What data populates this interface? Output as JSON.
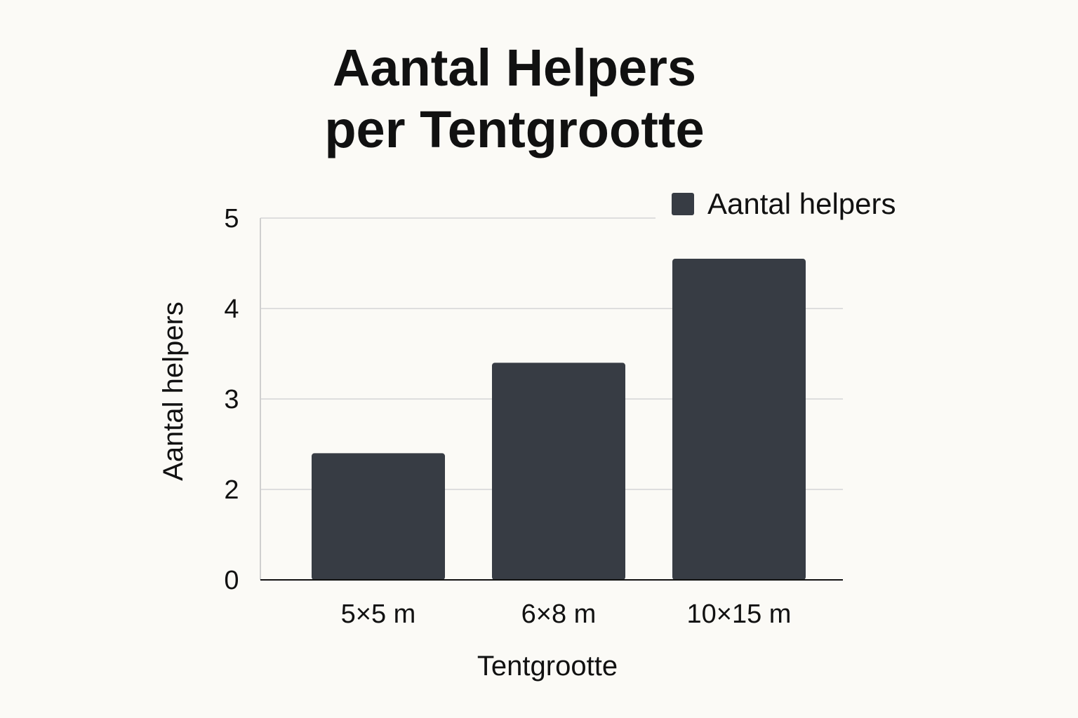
{
  "chart_data": {
    "type": "bar",
    "title_lines": [
      "Aantal Helpers",
      "per Tentgrootte"
    ],
    "xlabel": "Tentgrootte",
    "ylabel": "Aantal helpers",
    "categories": [
      "5×5 m",
      "6×8 m",
      "10×15 m"
    ],
    "series": [
      {
        "name": "Aantal helpers",
        "values": [
          2.4,
          3.4,
          4.55
        ],
        "color": "#373c44"
      }
    ],
    "y_ticks": [
      "0",
      "2",
      "3",
      "4",
      "5"
    ],
    "ylim": [
      0,
      5
    ],
    "grid": true,
    "legend_position": "top-right"
  }
}
